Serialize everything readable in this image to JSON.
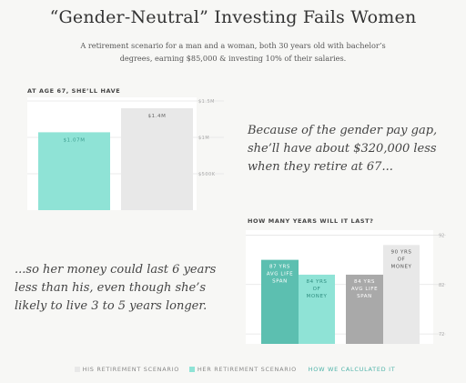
{
  "title": "“Gender-Neutral” Investing Fails Women",
  "subtitle": "A retirement scenario for a man and a woman, both 30 years old with bachelor’s degrees, earning $85,000 & investing 10% of their salaries.",
  "colors": {
    "his": "#e8e8e8",
    "hers": "#8fe3d6",
    "hers_dark": "#5cbfb0",
    "his_dark": "#a9a9a9",
    "accent": "#4fb3a9"
  },
  "quote1": "Because of the gender pay gap, she’ll have about $320,000 less when they retire at 67...",
  "quote2": "...so her money could last 6 years less than his, even though she’s likely to live 3 to 5 years longer.",
  "legend": {
    "his": "HIS RETIREMENT SCENARIO",
    "hers": "HER RETIREMENT SCENARIO",
    "link": "HOW WE CALCULATED IT"
  },
  "chart_data": [
    {
      "type": "bar",
      "title": "AT AGE 67, SHE’LL HAVE",
      "categories": [
        "Her",
        "His"
      ],
      "values": [
        1.07,
        1.4
      ],
      "data_labels": [
        "$1.07M",
        "$1.4M"
      ],
      "ytick_labels": [
        "$500K",
        "$1M",
        "$1.5M"
      ],
      "ytick_values": [
        0.5,
        1.0,
        1.5
      ],
      "ylim": [
        0,
        1.5
      ],
      "grid": true
    },
    {
      "type": "bar",
      "title": "HOW MANY YEARS WILL IT LAST?",
      "categories": [
        "Her life span",
        "Her money",
        "His life span",
        "His money"
      ],
      "values": [
        87,
        84,
        84,
        90
      ],
      "data_labels": [
        [
          "87 YRS",
          "AVG LIFE",
          "SPAN"
        ],
        [
          "84 YRS",
          "OF",
          "MONEY"
        ],
        [
          "84 YRS",
          "AVG LIFE",
          "SPAN"
        ],
        [
          "90 YRS",
          "OF",
          "MONEY"
        ]
      ],
      "ytick_labels": [
        "72",
        "82",
        "92"
      ],
      "ytick_values": [
        72,
        82,
        92
      ],
      "ylim": [
        70,
        93
      ],
      "grid": true
    }
  ]
}
